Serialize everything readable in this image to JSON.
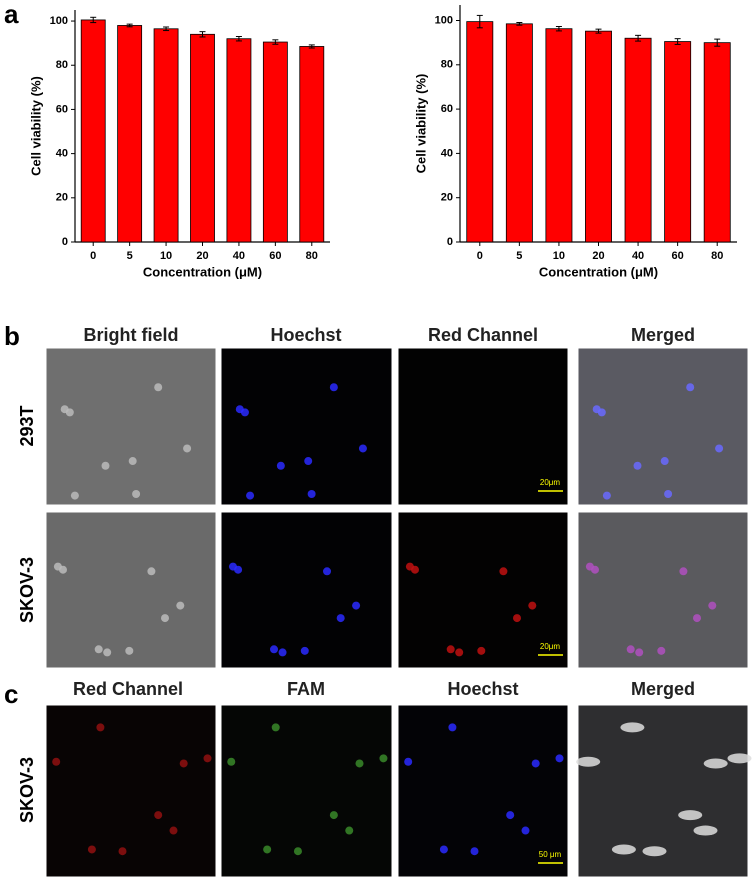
{
  "panel_labels": [
    "a",
    "b",
    "c"
  ],
  "chart_data": [
    {
      "type": "bar",
      "xlabel": "Concentration (μM)",
      "ylabel": "Cell viability (%)",
      "categories": [
        "0",
        "5",
        "10",
        "20",
        "40",
        "60",
        "80"
      ],
      "values": [
        100.5,
        98,
        96.5,
        94,
        92,
        90.5,
        88.5
      ],
      "errors": [
        1.2,
        0.6,
        0.8,
        1.2,
        1.0,
        1.0,
        0.7
      ],
      "color": "#ff0000",
      "ylim": [
        0,
        105
      ],
      "yticks": [
        0,
        20,
        40,
        60,
        80,
        100
      ]
    },
    {
      "type": "bar",
      "xlabel": "Concentration (μM)",
      "ylabel": "Cell viability (%)",
      "categories": [
        "0",
        "5",
        "10",
        "20",
        "40",
        "60",
        "80"
      ],
      "values": [
        99.5,
        98.5,
        96.3,
        95.2,
        92,
        90.5,
        90
      ],
      "errors": [
        2.8,
        0.6,
        1.0,
        0.9,
        1.3,
        1.3,
        1.6
      ],
      "color": "#ff0000",
      "ylim": [
        0,
        107
      ],
      "yticks": [
        0,
        20,
        40,
        60,
        80,
        100
      ]
    }
  ],
  "panel_b": {
    "columns": [
      "Bright field",
      "Hoechst",
      "Red Channel",
      "Merged"
    ],
    "rows": [
      "293T",
      "SKOV-3"
    ],
    "scale_bar": "20μm"
  },
  "panel_c": {
    "columns": [
      "Red Channel",
      "FAM",
      "Hoechst",
      "Merged"
    ],
    "rows": [
      "SKOV-3"
    ],
    "scale_bar": "50 μm"
  }
}
